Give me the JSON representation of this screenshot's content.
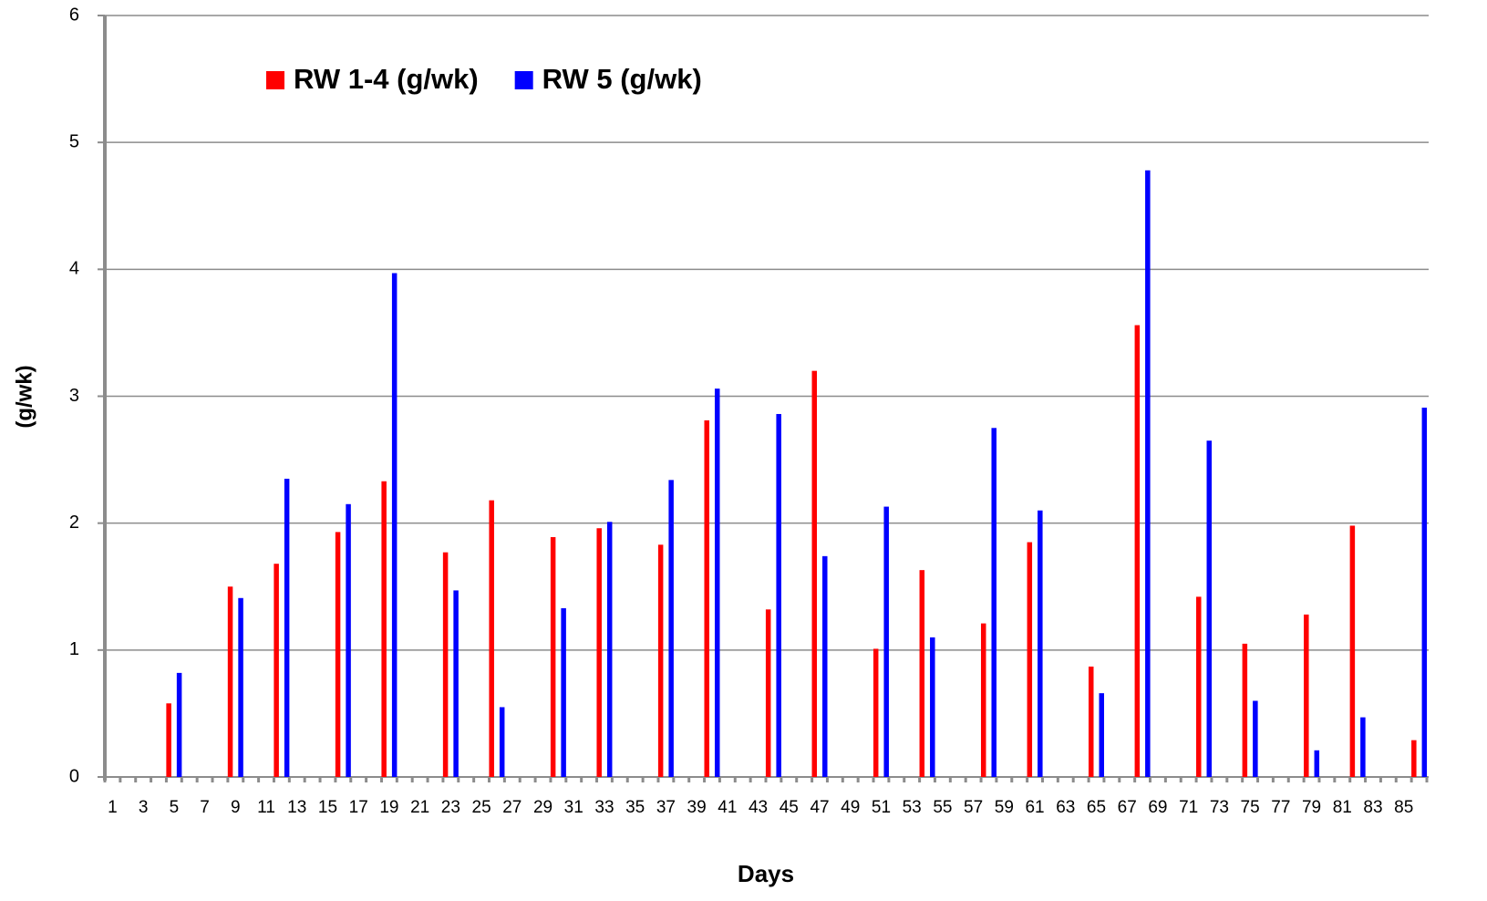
{
  "chart_data": {
    "type": "bar",
    "x_label": "Days",
    "y_label": "(g/wk)",
    "categories": [
      "1",
      null,
      "3",
      null,
      "5",
      null,
      "7",
      null,
      "9",
      null,
      "11",
      null,
      "13",
      null,
      "15",
      null,
      "17",
      null,
      "19",
      null,
      "21",
      null,
      "23",
      null,
      "25",
      null,
      "27",
      null,
      "29",
      null,
      "31",
      null,
      "33",
      null,
      "35",
      null,
      "37",
      null,
      "39",
      null,
      "41",
      null,
      "43",
      null,
      "45",
      null,
      "47",
      null,
      "49",
      null,
      "51",
      null,
      "53",
      null,
      "55",
      null,
      "57",
      null,
      "59",
      null,
      "61",
      null,
      "63",
      null,
      "65",
      null,
      "67",
      null,
      "69",
      null,
      "71",
      null,
      "73",
      null,
      "75",
      null,
      "77",
      null,
      "79",
      null,
      "81",
      null,
      "83",
      null,
      "85",
      null
    ],
    "series": [
      {
        "name": "RW 1-4 (g/wk)",
        "color": "#ff0000",
        "values": [
          null,
          null,
          null,
          null,
          0.58,
          null,
          null,
          null,
          1.5,
          null,
          null,
          1.68,
          null,
          null,
          null,
          1.93,
          null,
          null,
          2.33,
          null,
          null,
          null,
          1.77,
          null,
          null,
          2.18,
          null,
          null,
          null,
          1.89,
          null,
          null,
          1.96,
          null,
          null,
          null,
          1.83,
          null,
          null,
          2.81,
          null,
          null,
          null,
          1.32,
          null,
          null,
          3.2,
          null,
          null,
          null,
          1.01,
          null,
          null,
          1.63,
          null,
          null,
          null,
          1.21,
          null,
          null,
          1.85,
          null,
          null,
          null,
          0.87,
          null,
          null,
          3.56,
          null,
          null,
          null,
          1.42,
          null,
          null,
          1.05,
          null,
          null,
          null,
          1.28,
          null,
          null,
          1.98,
          null,
          null,
          null,
          0.29
        ]
      },
      {
        "name": "RW 5 (g/wk)",
        "color": "#0000ff",
        "values": [
          null,
          null,
          null,
          null,
          0.82,
          null,
          null,
          null,
          1.41,
          null,
          null,
          2.35,
          null,
          null,
          null,
          2.15,
          null,
          null,
          3.97,
          null,
          null,
          null,
          1.47,
          null,
          null,
          0.55,
          null,
          null,
          null,
          1.33,
          null,
          null,
          2.01,
          null,
          null,
          null,
          2.34,
          null,
          null,
          3.06,
          null,
          null,
          null,
          2.86,
          null,
          null,
          1.74,
          null,
          null,
          null,
          2.13,
          null,
          null,
          1.1,
          null,
          null,
          null,
          2.75,
          null,
          null,
          2.1,
          null,
          null,
          null,
          0.66,
          null,
          null,
          4.78,
          null,
          null,
          null,
          2.65,
          null,
          null,
          0.6,
          null,
          null,
          null,
          0.21,
          null,
          null,
          0.47,
          null,
          null,
          null,
          2.91
        ]
      }
    ],
    "ylim": [
      0,
      6
    ],
    "yticks": [
      0,
      1,
      2,
      3,
      4,
      5,
      6
    ],
    "grid": true,
    "legend": "top-left"
  }
}
